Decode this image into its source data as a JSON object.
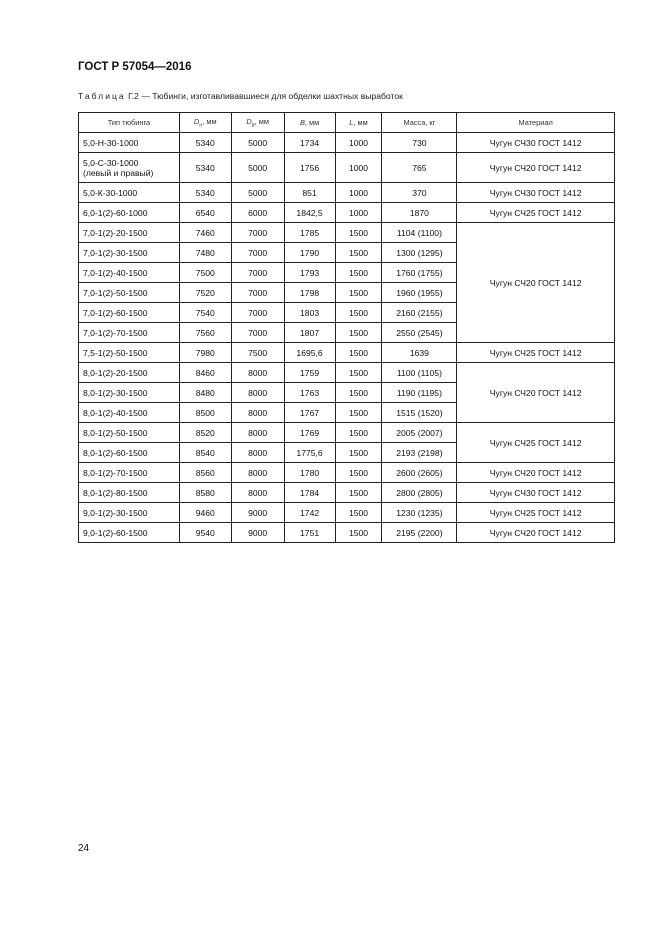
{
  "header": {
    "doc_title": "ГОСТ Р 57054—2016"
  },
  "caption": {
    "label": "Таблица",
    "text": " Г.2 — Тюбинги, изготавливавшиеся для обделки шахтных выработок"
  },
  "table": {
    "headers": {
      "type": "Тип тюбинга",
      "dn_sym": "D",
      "dn_sub": "н",
      "dn_unit": ", мм",
      "dv_sym": "D",
      "dv_sub": "в",
      "dv_unit": ", мм",
      "b_sym": "B",
      "b_unit": ", мм",
      "l_sym": "L",
      "l_unit": ", мм",
      "mass": "Масса, кг",
      "material": "Материал"
    },
    "rows": [
      {
        "type": "5,0-Н-30-1000",
        "dn": "5340",
        "dv": "5000",
        "b": "1734",
        "l": "1000",
        "mass": "730",
        "material": "Чугун СЧ30 ГОСТ 1412",
        "span": 1
      },
      {
        "type": "5,0-С-30-1000",
        "type2": "(левый и правый)",
        "dn": "5340",
        "dv": "5000",
        "b": "1756",
        "l": "1000",
        "mass": "765",
        "material": "Чугун СЧ20 ГОСТ 1412",
        "span": 1
      },
      {
        "type": "5,0-К-30-1000",
        "dn": "5340",
        "dv": "5000",
        "b": "851",
        "l": "1000",
        "mass": "370",
        "material": "Чугун СЧ30 ГОСТ 1412",
        "span": 1
      },
      {
        "type": "6,0-1(2)-60-1000",
        "dn": "6540",
        "dv": "6000",
        "b": "1842,5",
        "l": "1000",
        "mass": "1870",
        "material": "Чугун СЧ25 ГОСТ 1412",
        "span": 1
      },
      {
        "type": "7,0-1(2)-20-1500",
        "dn": "7460",
        "dv": "7000",
        "b": "1785",
        "l": "1500",
        "mass": "1104 (1100)",
        "material": "Чугун СЧ20 ГОСТ 1412",
        "span": 6
      },
      {
        "type": "7,0-1(2)-30-1500",
        "dn": "7480",
        "dv": "7000",
        "b": "1790",
        "l": "1500",
        "mass": "1300 (1295)"
      },
      {
        "type": "7,0-1(2)-40-1500",
        "dn": "7500",
        "dv": "7000",
        "b": "1793",
        "l": "1500",
        "mass": "1760 (1755)"
      },
      {
        "type": "7,0-1(2)-50-1500",
        "dn": "7520",
        "dv": "7000",
        "b": "1798",
        "l": "1500",
        "mass": "1960 (1955)"
      },
      {
        "type": "7,0-1(2)-60-1500",
        "dn": "7540",
        "dv": "7000",
        "b": "1803",
        "l": "1500",
        "mass": "2160 (2155)"
      },
      {
        "type": "7,0-1(2)-70-1500",
        "dn": "7560",
        "dv": "7000",
        "b": "1807",
        "l": "1500",
        "mass": "2550 (2545)"
      },
      {
        "type": "7,5-1(2)-50-1500",
        "dn": "7980",
        "dv": "7500",
        "b": "1695,6",
        "l": "1500",
        "mass": "1639",
        "material": "Чугун СЧ25 ГОСТ 1412",
        "span": 1
      },
      {
        "type": "8,0-1(2)-20-1500",
        "dn": "8460",
        "dv": "8000",
        "b": "1759",
        "l": "1500",
        "mass": "1100 (1105)",
        "material": "Чугун СЧ20 ГОСТ 1412",
        "span": 3
      },
      {
        "type": "8,0-1(2)-30-1500",
        "dn": "8480",
        "dv": "8000",
        "b": "1763",
        "l": "1500",
        "mass": "1190 (1195)"
      },
      {
        "type": "8,0-1(2)-40-1500",
        "dn": "8500",
        "dv": "8000",
        "b": "1767",
        "l": "1500",
        "mass": "1515 (1520)"
      },
      {
        "type": "8,0-1(2)-50-1500",
        "dn": "8520",
        "dv": "8000",
        "b": "1769",
        "l": "1500",
        "mass": "2005 (2007)",
        "material": "Чугун СЧ25 ГОСТ 1412",
        "span": 2
      },
      {
        "type": "8,0-1(2)-60-1500",
        "dn": "8540",
        "dv": "8000",
        "b": "1775,6",
        "l": "1500",
        "mass": "2193 (2198)"
      },
      {
        "type": "8,0-1(2)-70-1500",
        "dn": "8560",
        "dv": "8000",
        "b": "1780",
        "l": "1500",
        "mass": "2600 (2605)",
        "material": "Чугун СЧ20 ГОСТ 1412",
        "span": 1
      },
      {
        "type": "8,0-1(2)-80-1500",
        "dn": "8580",
        "dv": "8000",
        "b": "1784",
        "l": "1500",
        "mass": "2800 (2805)",
        "material": "Чугун СЧ30 ГОСТ 1412",
        "span": 1
      },
      {
        "type": "9,0-1(2)-30-1500",
        "dn": "9460",
        "dv": "9000",
        "b": "1742",
        "l": "1500",
        "mass": "1230 (1235)",
        "material": "Чугун СЧ25 ГОСТ 1412",
        "span": 1
      },
      {
        "type": "9,0-1(2)-60-1500",
        "dn": "9540",
        "dv": "9000",
        "b": "1751",
        "l": "1500",
        "mass": "2195 (2200)",
        "material": "Чугун СЧ20 ГОСТ 1412",
        "span": 1
      }
    ]
  },
  "footer": {
    "page_number": "24"
  }
}
